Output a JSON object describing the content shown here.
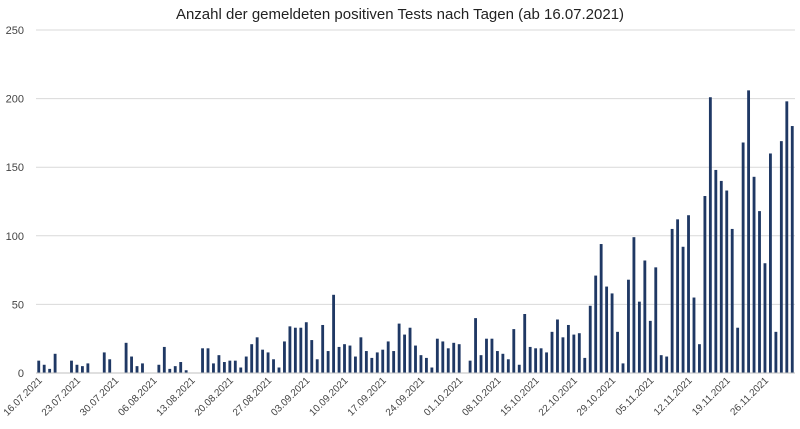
{
  "chart_data": {
    "type": "bar",
    "title": "Anzahl der gemeldeten positiven Tests nach Tagen (ab 16.07.2021)",
    "xlabel": "",
    "ylabel": "",
    "ylim": [
      0,
      250
    ],
    "yticks": [
      0,
      50,
      100,
      150,
      200,
      250
    ],
    "grid": true,
    "bar_color": "#1f3864",
    "x_tick_labels": [
      "16.07.2021",
      "23.07.2021",
      "30.07.2021",
      "06.08.2021",
      "13.08.2021",
      "20.08.2021",
      "27.08.2021",
      "03.09.2021",
      "10.09.2021",
      "17.09.2021",
      "24.09.2021",
      "01.10.2021",
      "08.10.2021",
      "15.10.2021",
      "22.10.2021",
      "29.10.2021",
      "05.11.2021",
      "12.11.2021",
      "19.11.2021",
      "26.11.2021"
    ],
    "values": [
      9,
      6,
      3,
      14,
      0,
      0,
      9,
      6,
      5,
      7,
      0,
      0,
      15,
      10,
      0,
      0,
      22,
      12,
      5,
      7,
      0,
      0,
      6,
      19,
      3,
      5,
      8,
      2,
      0,
      0,
      18,
      18,
      7,
      13,
      8,
      9,
      9,
      4,
      12,
      21,
      26,
      17,
      15,
      10,
      4,
      23,
      34,
      33,
      33,
      37,
      24,
      10,
      35,
      16,
      57,
      19,
      21,
      20,
      12,
      26,
      16,
      11,
      15,
      17,
      23,
      16,
      36,
      28,
      33,
      20,
      13,
      11,
      4,
      25,
      23,
      18,
      22,
      21,
      0,
      9,
      40,
      13,
      25,
      25,
      16,
      14,
      10,
      32,
      6,
      43,
      19,
      18,
      18,
      15,
      30,
      39,
      26,
      35,
      28,
      29,
      11,
      49,
      71,
      94,
      63,
      58,
      30,
      7,
      68,
      99,
      52,
      82,
      38,
      77,
      13,
      12,
      105,
      112,
      92,
      115,
      55,
      21,
      129,
      201,
      148,
      140,
      133,
      105,
      33,
      168,
      206,
      143,
      118,
      80,
      160,
      30,
      169,
      198,
      180
    ]
  }
}
